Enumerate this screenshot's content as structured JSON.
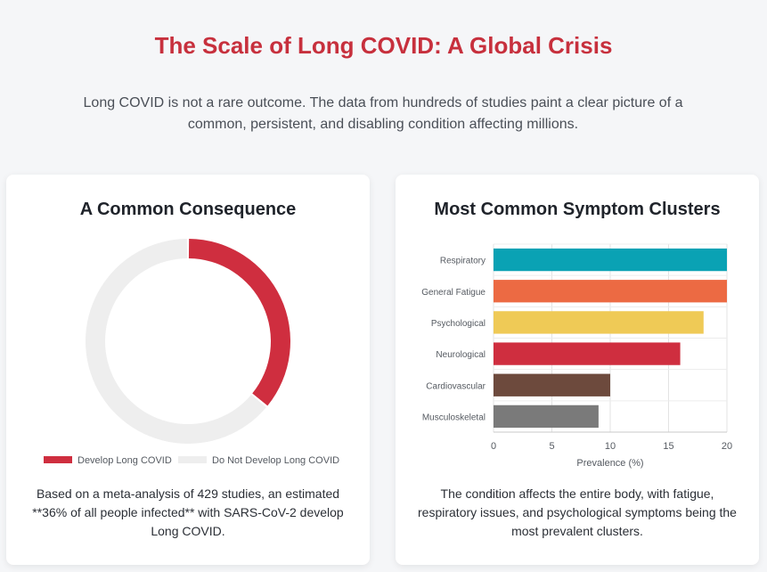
{
  "header": {
    "title": "The Scale of Long COVID: A Global Crisis",
    "subtitle": "Long COVID is not a rare outcome. The data from hundreds of studies paint a clear picture of a common, persistent, and disabling condition affecting millions."
  },
  "left_card": {
    "title": "A Common Consequence",
    "text": "Based on a meta-analysis of 429 studies, an estimated **36% of all people infected** with SARS-CoV-2 develop Long COVID."
  },
  "right_card": {
    "title": "Most Common Symptom Clusters",
    "text": "The condition affects the entire body, with fatigue, respiratory issues, and psychological symptoms being the most prevalent clusters."
  },
  "chart_data": [
    {
      "type": "pie",
      "labels": [
        "Develop Long COVID",
        "Do Not Develop Long COVID"
      ],
      "values": [
        36,
        64
      ],
      "colors": [
        "#cf2e3f",
        "#eeeeee"
      ],
      "legend_position": "bottom"
    },
    {
      "type": "bar",
      "orientation": "horizontal",
      "categories": [
        "Respiratory",
        "General Fatigue",
        "Psychological",
        "Neurological",
        "Cardiovascular",
        "Musculoskeletal"
      ],
      "values": [
        20,
        20,
        18,
        16,
        10,
        9
      ],
      "colors": [
        "#0aa2b4",
        "#ec6a43",
        "#efca56",
        "#cf2e3f",
        "#6d4a3d",
        "#7a7a7a"
      ],
      "xlabel": "Prevalence (%)",
      "xlim": [
        0,
        20
      ],
      "xticks": [
        0,
        5,
        10,
        15,
        20
      ],
      "grid": true
    }
  ]
}
